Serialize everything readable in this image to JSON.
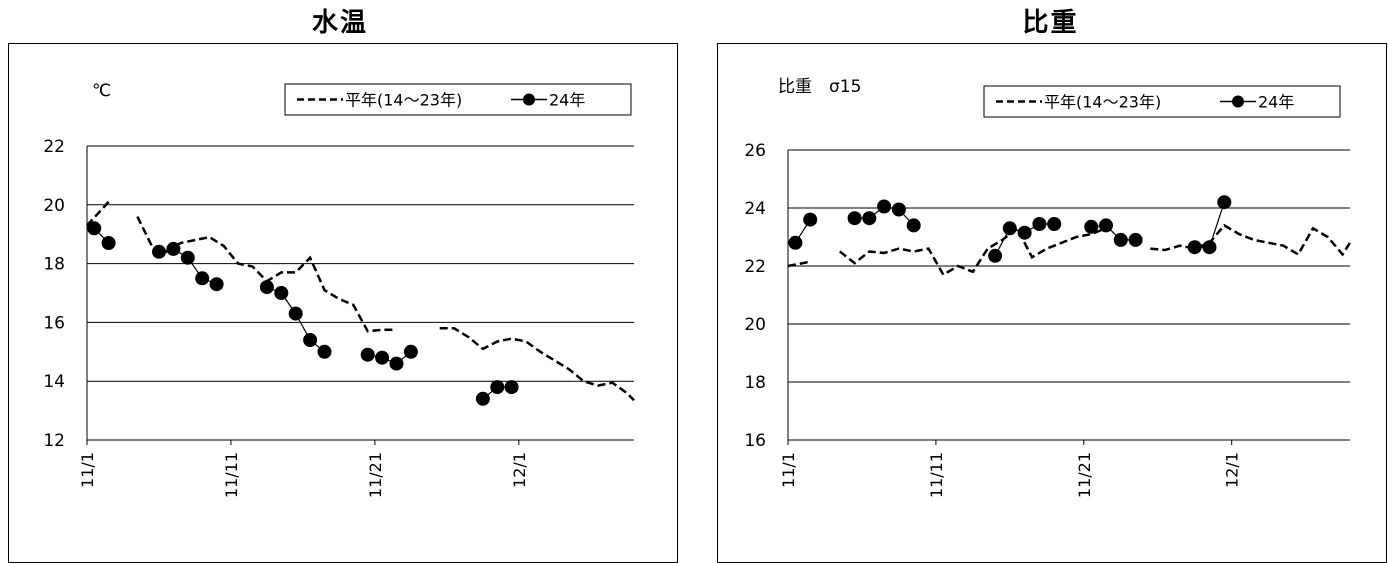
{
  "chart_data": [
    {
      "type": "line",
      "title": "水温",
      "unit_label": "℃",
      "ylim": [
        12,
        22
      ],
      "yticks": [
        12,
        14,
        16,
        18,
        20,
        22
      ],
      "xlim": [
        1,
        39
      ],
      "xticks": [
        {
          "day": 1,
          "label": "11/1"
        },
        {
          "day": 11,
          "label": "11/11"
        },
        {
          "day": 21,
          "label": "11/21"
        },
        {
          "day": 31,
          "label": "12/1"
        }
      ],
      "legend": [
        {
          "name": "平年(14〜23年)",
          "style": "dashed"
        },
        {
          "name": "24年",
          "style": "marker"
        }
      ],
      "grid": true,
      "series": [
        {
          "name": "平年(14〜23年)",
          "style": "dashed",
          "segments": [
            [
              [
                1,
                19.3
              ],
              [
                2.5,
                20.1
              ]
            ],
            [
              [
                4.5,
                19.6
              ],
              [
                5.5,
                18.6
              ],
              [
                6.5,
                18.4
              ],
              [
                7.5,
                18.7
              ],
              [
                8.5,
                18.8
              ],
              [
                9.5,
                18.9
              ],
              [
                10.5,
                18.6
              ],
              [
                11.5,
                18.0
              ],
              [
                12.5,
                17.9
              ],
              [
                13.5,
                17.4
              ],
              [
                14.5,
                17.7
              ],
              [
                15.5,
                17.7
              ],
              [
                16.5,
                18.2
              ],
              [
                17.5,
                17.1
              ],
              [
                18.5,
                16.8
              ],
              [
                19.5,
                16.6
              ],
              [
                20.5,
                15.7
              ],
              [
                21.5,
                15.75
              ],
              [
                22.5,
                15.75
              ]
            ],
            [
              [
                25.5,
                15.8
              ],
              [
                26.5,
                15.8
              ],
              [
                27.5,
                15.5
              ],
              [
                28.5,
                15.1
              ],
              [
                29.5,
                15.35
              ],
              [
                30.5,
                15.45
              ],
              [
                31.5,
                15.35
              ],
              [
                32.5,
                15.0
              ],
              [
                33.5,
                14.7
              ],
              [
                34.5,
                14.4
              ],
              [
                35.5,
                14.0
              ],
              [
                36.5,
                13.85
              ],
              [
                37.5,
                13.95
              ],
              [
                38.5,
                13.6
              ],
              [
                39,
                13.35
              ]
            ]
          ]
        },
        {
          "name": "24年",
          "style": "marker",
          "segments": [
            [
              [
                1.5,
                19.2
              ],
              [
                2.5,
                18.7
              ]
            ],
            [
              [
                6,
                18.4
              ],
              [
                7,
                18.5
              ],
              [
                8,
                18.2
              ],
              [
                9,
                17.5
              ],
              [
                10,
                17.3
              ]
            ],
            [
              [
                13.5,
                17.2
              ],
              [
                14.5,
                17.0
              ],
              [
                15.5,
                16.3
              ],
              [
                16.5,
                15.4
              ],
              [
                17.5,
                15.0
              ]
            ],
            [
              [
                20.5,
                14.9
              ],
              [
                21.5,
                14.8
              ],
              [
                22.5,
                14.6
              ],
              [
                23.5,
                15.0
              ]
            ],
            [
              [
                28.5,
                13.4
              ],
              [
                29.5,
                13.8
              ],
              [
                30.5,
                13.8
              ]
            ]
          ]
        }
      ]
    },
    {
      "type": "line",
      "title": "比重",
      "unit_label": "比重　σ15",
      "ylim": [
        16,
        26
      ],
      "yticks": [
        16,
        18,
        20,
        22,
        24,
        26
      ],
      "xlim": [
        1,
        39
      ],
      "xticks": [
        {
          "day": 1,
          "label": "11/1"
        },
        {
          "day": 11,
          "label": "11/11"
        },
        {
          "day": 21,
          "label": "11/21"
        },
        {
          "day": 31,
          "label": "12/1"
        }
      ],
      "legend": [
        {
          "name": "平年(14〜23年)",
          "style": "dashed"
        },
        {
          "name": "24年",
          "style": "marker"
        }
      ],
      "grid": true,
      "series": [
        {
          "name": "平年(14〜23年)",
          "style": "dashed",
          "segments": [
            [
              [
                1,
                22.0
              ],
              [
                2.5,
                22.15
              ]
            ],
            [
              [
                4.5,
                22.5
              ],
              [
                5.5,
                22.1
              ],
              [
                6.5,
                22.5
              ],
              [
                7.5,
                22.45
              ],
              [
                8.5,
                22.6
              ],
              [
                9.5,
                22.5
              ],
              [
                10.5,
                22.6
              ],
              [
                11.5,
                21.7
              ],
              [
                12.5,
                22.0
              ],
              [
                13.5,
                21.8
              ],
              [
                14.5,
                22.6
              ],
              [
                15.5,
                22.9
              ],
              [
                16.5,
                23.3
              ],
              [
                17.5,
                22.3
              ],
              [
                18.5,
                22.6
              ],
              [
                19.5,
                22.8
              ],
              [
                20.5,
                23.0
              ],
              [
                21.5,
                23.1
              ],
              [
                22.5,
                23.3
              ]
            ],
            [
              [
                25.5,
                22.6
              ],
              [
                26.5,
                22.55
              ],
              [
                27.5,
                22.7
              ],
              [
                28.5,
                22.6
              ],
              [
                29.5,
                22.8
              ],
              [
                30.5,
                23.4
              ],
              [
                31.5,
                23.1
              ],
              [
                32.5,
                22.9
              ],
              [
                33.5,
                22.8
              ],
              [
                34.5,
                22.7
              ],
              [
                35.5,
                22.4
              ],
              [
                36.5,
                23.3
              ],
              [
                37.5,
                23.0
              ],
              [
                38.5,
                22.4
              ],
              [
                39,
                22.8
              ]
            ]
          ]
        },
        {
          "name": "24年",
          "style": "marker",
          "segments": [
            [
              [
                1.5,
                22.8
              ],
              [
                2.5,
                23.6
              ]
            ],
            [
              [
                5.5,
                23.65
              ],
              [
                6.5,
                23.65
              ],
              [
                7.5,
                24.05
              ],
              [
                8.5,
                23.95
              ],
              [
                9.5,
                23.4
              ]
            ],
            [
              [
                15,
                22.35
              ],
              [
                16,
                23.3
              ],
              [
                17,
                23.15
              ],
              [
                18,
                23.45
              ],
              [
                19,
                23.45
              ]
            ],
            [
              [
                21.5,
                23.35
              ],
              [
                22.5,
                23.4
              ],
              [
                23.5,
                22.9
              ],
              [
                24.5,
                22.9
              ]
            ],
            [
              [
                28.5,
                22.65
              ],
              [
                29.5,
                22.65
              ],
              [
                30.5,
                24.2
              ]
            ]
          ]
        }
      ]
    }
  ]
}
